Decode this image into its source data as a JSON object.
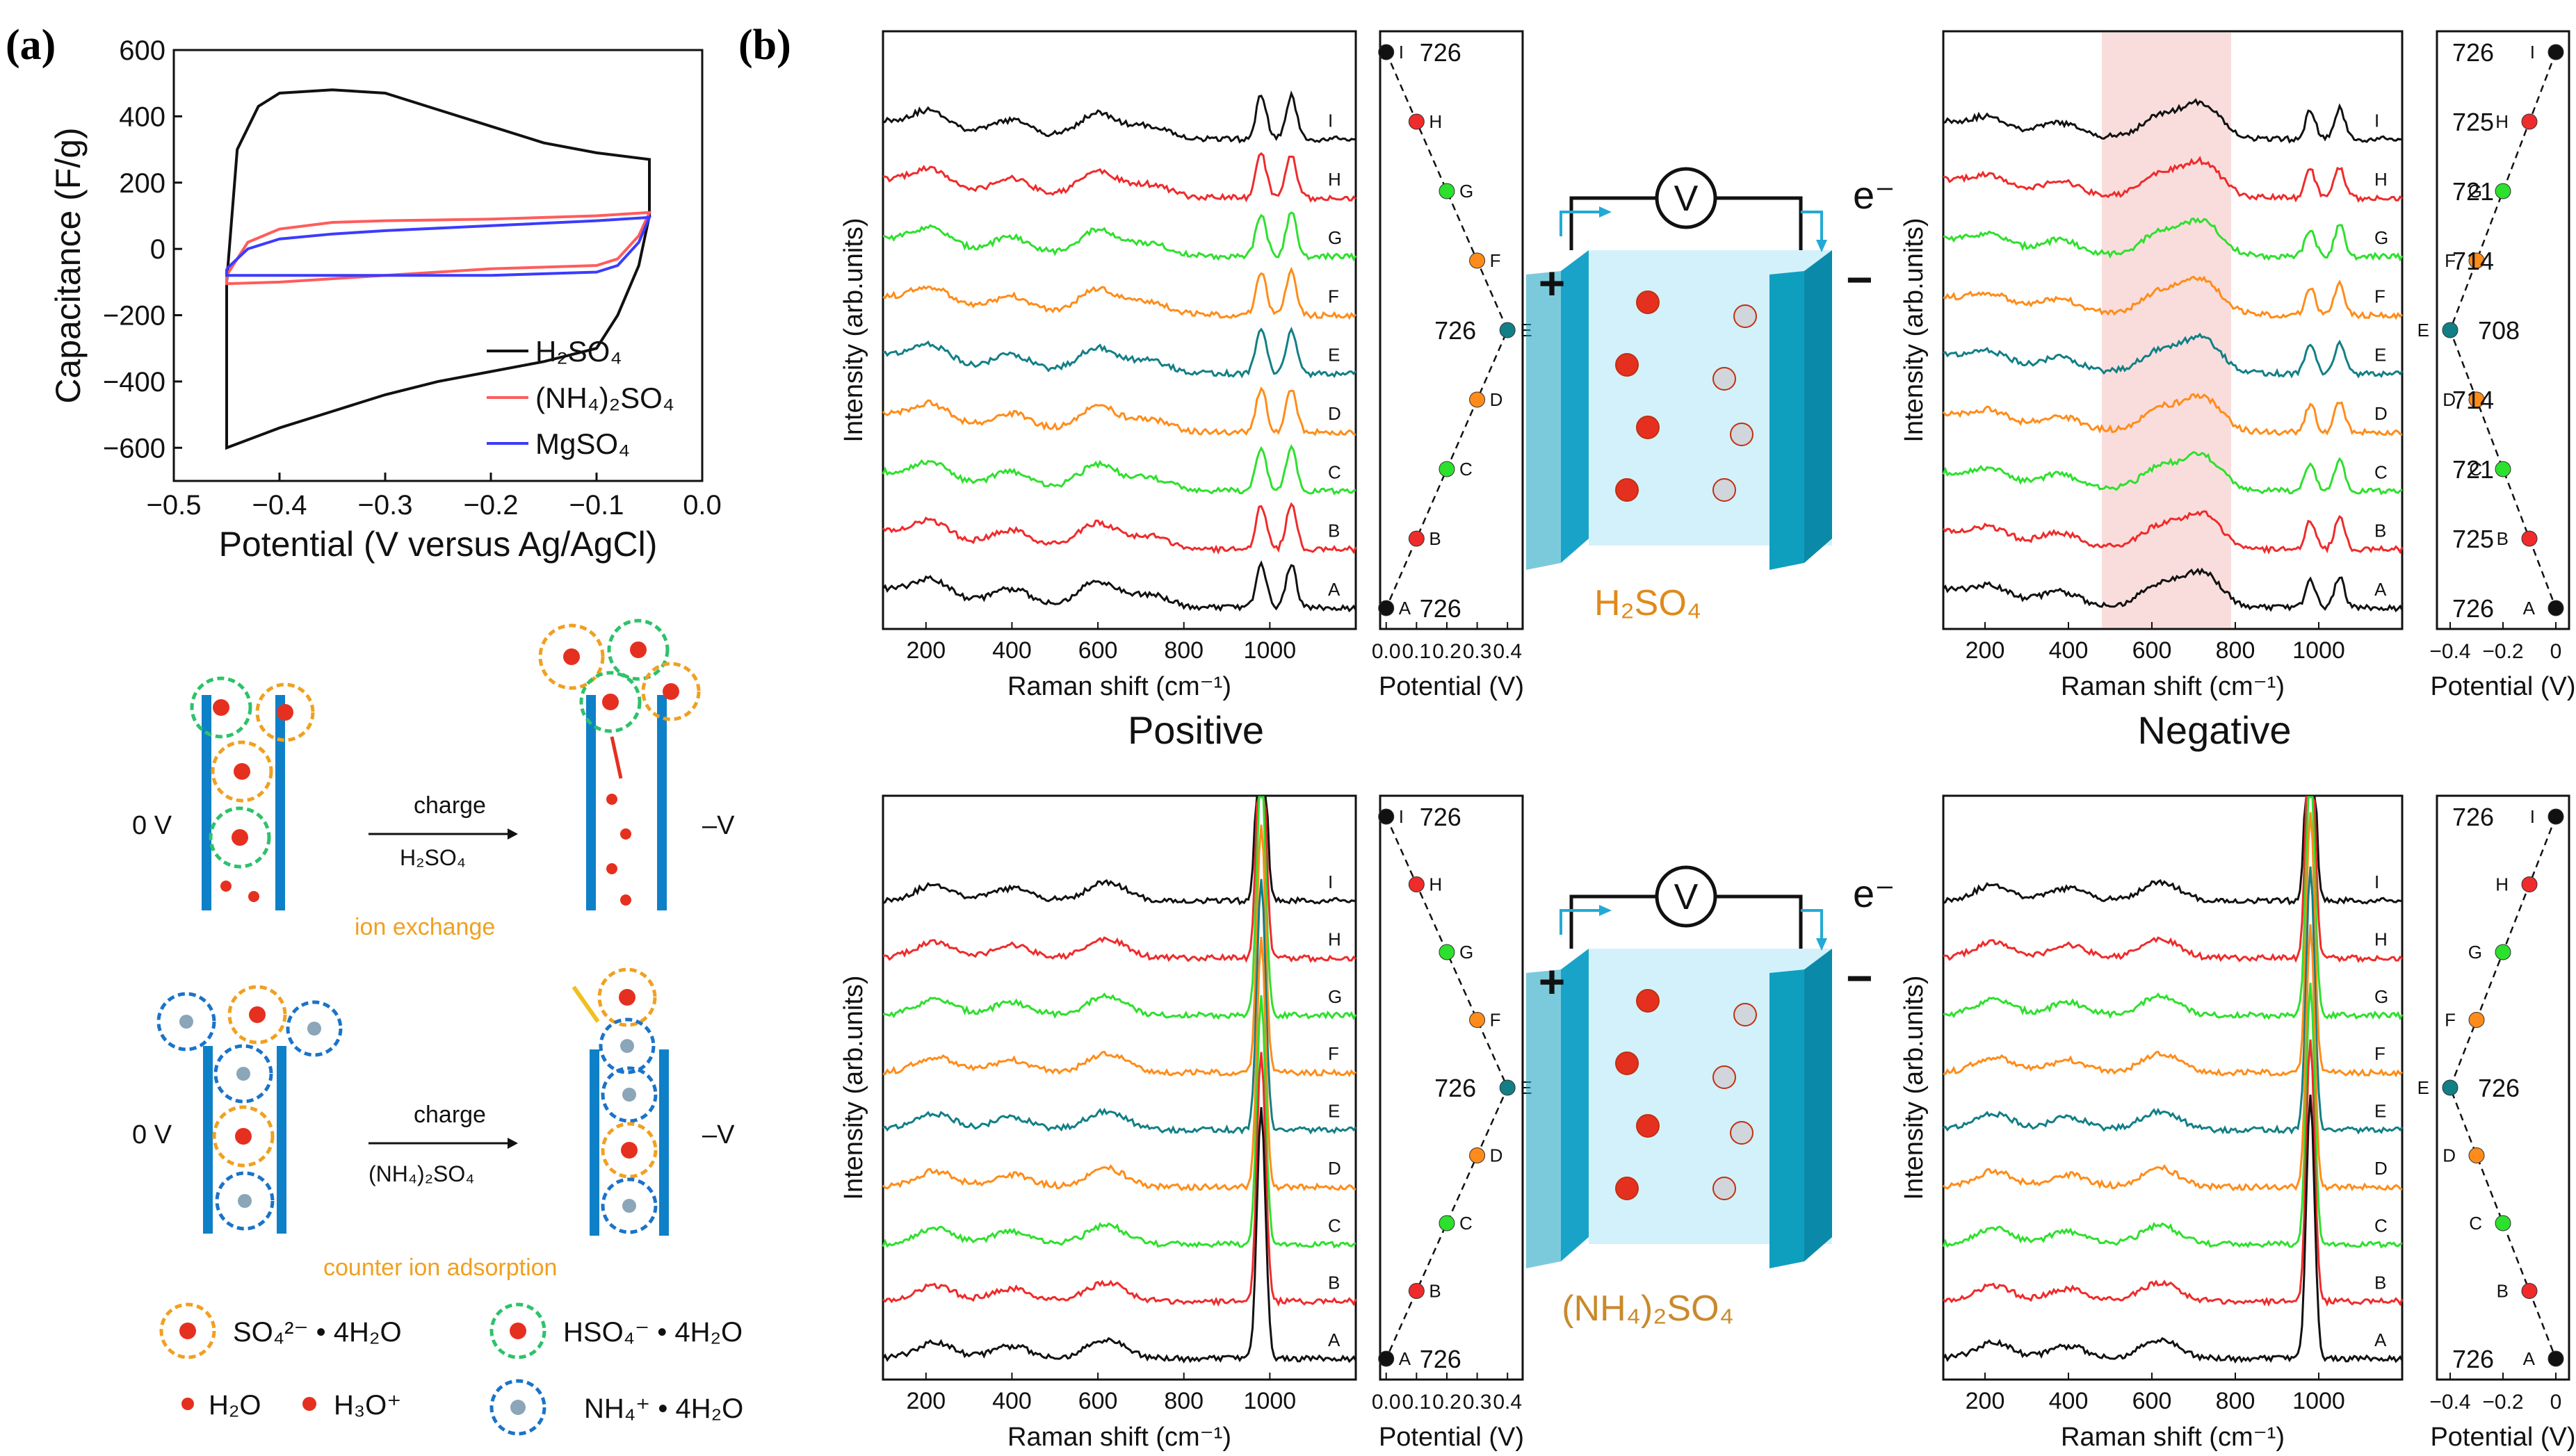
{
  "panel_labels": {
    "a": "(a)",
    "b": "(b)"
  },
  "colors": {
    "black": "#111111",
    "red": "#ef2b2b",
    "green": "#2ee02e",
    "orange": "#ff8c1a",
    "teal": "#127f86",
    "blue": "#3b3bff",
    "pink": "#ff5c5c",
    "cyan": "#23a9d6",
    "electrode": "#0e9fbf",
    "electrolyte": "#d3f1fb",
    "highlight": "#f8d5d5"
  },
  "chart_data": [
    {
      "id": "cv",
      "type": "line",
      "xlabel": "Potential (V versus Ag/AgCl)",
      "ylabel": "Capacitance (F/g)",
      "xlim": [
        -0.5,
        0.0
      ],
      "ylim": [
        -700,
        600
      ],
      "xticks": [
        "−0.5",
        "−0.4",
        "−0.3",
        "−0.2",
        "−0.1",
        "0.0"
      ],
      "yticks": [
        "600",
        "400",
        "200",
        "0",
        "−200",
        "−400",
        "−600"
      ],
      "legend": [
        "H2SO4",
        "(NH4)2SO4",
        "MgSO4"
      ],
      "legend_display": [
        "H₂SO₄",
        "(NH₄)₂SO₄",
        "MgSO₄"
      ],
      "series": [
        {
          "name": "H2SO4",
          "upper": [
            [
              -0.45,
              -100
            ],
            [
              -0.44,
              300
            ],
            [
              -0.42,
              430
            ],
            [
              -0.4,
              470
            ],
            [
              -0.35,
              480
            ],
            [
              -0.3,
              470
            ],
            [
              -0.25,
              420
            ],
            [
              -0.2,
              370
            ],
            [
              -0.15,
              320
            ],
            [
              -0.1,
              290
            ],
            [
              -0.05,
              270
            ]
          ],
          "lower": [
            [
              -0.05,
              270
            ],
            [
              -0.05,
              100
            ],
            [
              -0.06,
              -50
            ],
            [
              -0.08,
              -200
            ],
            [
              -0.1,
              -300
            ],
            [
              -0.15,
              -340
            ],
            [
              -0.2,
              -370
            ],
            [
              -0.25,
              -400
            ],
            [
              -0.3,
              -440
            ],
            [
              -0.35,
              -490
            ],
            [
              -0.4,
              -540
            ],
            [
              -0.45,
              -600
            ],
            [
              -0.45,
              -100
            ]
          ]
        },
        {
          "name": "(NH4)2SO4",
          "upper": [
            [
              -0.45,
              -80
            ],
            [
              -0.43,
              20
            ],
            [
              -0.4,
              60
            ],
            [
              -0.35,
              80
            ],
            [
              -0.3,
              85
            ],
            [
              -0.2,
              90
            ],
            [
              -0.1,
              100
            ],
            [
              -0.05,
              110
            ]
          ],
          "lower": [
            [
              -0.05,
              110
            ],
            [
              -0.06,
              40
            ],
            [
              -0.08,
              -30
            ],
            [
              -0.1,
              -50
            ],
            [
              -0.2,
              -60
            ],
            [
              -0.3,
              -80
            ],
            [
              -0.4,
              -100
            ],
            [
              -0.45,
              -105
            ],
            [
              -0.45,
              -80
            ]
          ]
        },
        {
          "name": "MgSO4",
          "upper": [
            [
              -0.45,
              -60
            ],
            [
              -0.43,
              0
            ],
            [
              -0.4,
              30
            ],
            [
              -0.35,
              45
            ],
            [
              -0.3,
              55
            ],
            [
              -0.2,
              70
            ],
            [
              -0.1,
              85
            ],
            [
              -0.05,
              95
            ]
          ],
          "lower": [
            [
              -0.05,
              95
            ],
            [
              -0.06,
              20
            ],
            [
              -0.08,
              -50
            ],
            [
              -0.1,
              -70
            ],
            [
              -0.2,
              -80
            ],
            [
              -0.3,
              -80
            ],
            [
              -0.4,
              -80
            ],
            [
              -0.45,
              -80
            ],
            [
              -0.45,
              -60
            ]
          ]
        }
      ]
    },
    {
      "id": "raman-h2so4-pos",
      "type": "line",
      "xlabel": "Raman shift (cm⁻¹)",
      "ylabel": "Intensity (arb.units)",
      "xlim": [
        100,
        1200
      ],
      "xticks": [
        200,
        400,
        600,
        800,
        1000
      ],
      "curves": [
        "I",
        "H",
        "G",
        "F",
        "E",
        "D",
        "C",
        "B",
        "A"
      ],
      "peaks": [
        [
          210,
          30
        ],
        [
          400,
          25
        ],
        [
          600,
          40
        ],
        [
          720,
          20
        ],
        [
          980,
          70
        ],
        [
          1050,
          70
        ]
      ]
    },
    {
      "id": "pot-h2so4-pos",
      "type": "scatter",
      "xlabel": "Potential (V)",
      "xlim": [
        -0.02,
        0.45
      ],
      "xticks": [
        "0.0",
        "0.1",
        "0.2",
        "0.3",
        "0.4"
      ],
      "points": [
        {
          "label": "I",
          "x": 0.0,
          "value": "726"
        },
        {
          "label": "H",
          "x": 0.1,
          "value": ""
        },
        {
          "label": "G",
          "x": 0.2,
          "value": ""
        },
        {
          "label": "F",
          "x": 0.3,
          "value": ""
        },
        {
          "label": "E",
          "x": 0.4,
          "value": "726"
        },
        {
          "label": "D",
          "x": 0.3,
          "value": ""
        },
        {
          "label": "C",
          "x": 0.2,
          "value": ""
        },
        {
          "label": "B",
          "x": 0.1,
          "value": ""
        },
        {
          "label": "A",
          "x": 0.0,
          "value": "726"
        }
      ]
    },
    {
      "id": "raman-h2so4-neg",
      "type": "line",
      "xlabel": "Raman shift (cm⁻¹)",
      "ylabel": "Intensity (arb.units)",
      "xlim": [
        100,
        1200
      ],
      "xticks": [
        200,
        400,
        600,
        800,
        1000
      ],
      "highlight": [
        480,
        790
      ],
      "curves": [
        "I",
        "H",
        "G",
        "F",
        "E",
        "D",
        "C",
        "B",
        "A"
      ],
      "peaks": [
        [
          210,
          20
        ],
        [
          380,
          20
        ],
        [
          620,
          35
        ],
        [
          720,
          55
        ],
        [
          980,
          45
        ],
        [
          1050,
          50
        ]
      ]
    },
    {
      "id": "pot-h2so4-neg",
      "type": "scatter",
      "xlabel": "Potential (V)",
      "xlim": [
        -0.45,
        0.05
      ],
      "xticks": [
        "−0.4",
        "−0.2",
        "0"
      ],
      "points": [
        {
          "label": "I",
          "x": 0.0,
          "value": "726"
        },
        {
          "label": "H",
          "x": -0.1,
          "value": "725"
        },
        {
          "label": "G",
          "x": -0.2,
          "value": "721"
        },
        {
          "label": "F",
          "x": -0.3,
          "value": "714"
        },
        {
          "label": "E",
          "x": -0.4,
          "value": "708"
        },
        {
          "label": "D",
          "x": -0.3,
          "value": "714"
        },
        {
          "label": "C",
          "x": -0.2,
          "value": "721"
        },
        {
          "label": "B",
          "x": -0.1,
          "value": "725"
        },
        {
          "label": "A",
          "x": 0.0,
          "value": "726"
        }
      ]
    },
    {
      "id": "raman-nh4-pos",
      "type": "line",
      "xlabel": "Raman shift (cm⁻¹)",
      "ylabel": "Intensity (arb.units)",
      "xlim": [
        100,
        1200
      ],
      "xticks": [
        200,
        400,
        600,
        800,
        1000
      ],
      "curves": [
        "I",
        "H",
        "G",
        "F",
        "E",
        "D",
        "C",
        "B",
        "A"
      ],
      "peaks": [
        [
          220,
          25
        ],
        [
          400,
          20
        ],
        [
          620,
          30
        ],
        [
          980,
          400
        ]
      ]
    },
    {
      "id": "pot-nh4-pos",
      "type": "scatter",
      "xlabel": "Potential (V)",
      "xlim": [
        -0.02,
        0.45
      ],
      "xticks": [
        "0.0",
        "0.1",
        "0.2",
        "0.3",
        "0.4"
      ],
      "points": [
        {
          "label": "I",
          "x": 0.0,
          "value": "726"
        },
        {
          "label": "H",
          "x": 0.1,
          "value": ""
        },
        {
          "label": "G",
          "x": 0.2,
          "value": ""
        },
        {
          "label": "F",
          "x": 0.3,
          "value": ""
        },
        {
          "label": "E",
          "x": 0.4,
          "value": "726"
        },
        {
          "label": "D",
          "x": 0.3,
          "value": ""
        },
        {
          "label": "C",
          "x": 0.2,
          "value": ""
        },
        {
          "label": "B",
          "x": 0.1,
          "value": ""
        },
        {
          "label": "A",
          "x": 0.0,
          "value": "726"
        }
      ]
    },
    {
      "id": "raman-nh4-neg",
      "type": "line",
      "xlabel": "Raman shift (cm⁻¹)",
      "ylabel": "Intensity (arb.units)",
      "xlim": [
        100,
        1200
      ],
      "xticks": [
        200,
        400,
        600,
        800,
        1000
      ],
      "curves": [
        "I",
        "H",
        "G",
        "F",
        "E",
        "D",
        "C",
        "B",
        "A"
      ],
      "peaks": [
        [
          220,
          25
        ],
        [
          400,
          20
        ],
        [
          620,
          30
        ],
        [
          980,
          420
        ]
      ]
    },
    {
      "id": "pot-nh4-neg",
      "type": "scatter",
      "xlabel": "Potential (V)",
      "xlim": [
        -0.45,
        0.05
      ],
      "xticks": [
        "−0.4",
        "−0.2",
        "0"
      ],
      "points": [
        {
          "label": "I",
          "x": 0.0,
          "value": "726"
        },
        {
          "label": "H",
          "x": -0.1,
          "value": ""
        },
        {
          "label": "G",
          "x": -0.2,
          "value": ""
        },
        {
          "label": "F",
          "x": -0.3,
          "value": ""
        },
        {
          "label": "E",
          "x": -0.4,
          "value": "726"
        },
        {
          "label": "D",
          "x": -0.3,
          "value": ""
        },
        {
          "label": "C",
          "x": -0.2,
          "value": ""
        },
        {
          "label": "B",
          "x": -0.1,
          "value": ""
        },
        {
          "label": "A",
          "x": 0.0,
          "value": "726"
        }
      ]
    }
  ],
  "labels": {
    "positive": "Positive",
    "negative": "Negative",
    "electrolyte_h2so4": "H₂SO₄",
    "electrolyte_nh4": "(NH₄)₂SO₄",
    "cell_meter": "V",
    "cell_electron": "e⁻",
    "cell_plus": "+",
    "cell_minus": "−"
  },
  "schematic": {
    "zero_v": "0 V",
    "neg_v": "–V",
    "charge": "charge",
    "top_electrolyte": "H₂SO₄",
    "bottom_electrolyte": "(NH₄)₂SO₄",
    "ion_exchange": "ion exchange",
    "counter_ion_adsorption": "counter ion adsorption"
  },
  "legend_ions": {
    "so4": "SO₄²⁻ • 4H₂O",
    "hso4": "HSO₄⁻ • 4H₂O",
    "h2o": "H₂O",
    "h3o": "H₃O⁺",
    "nh4": "NH₄⁺ • 4H₂O"
  }
}
